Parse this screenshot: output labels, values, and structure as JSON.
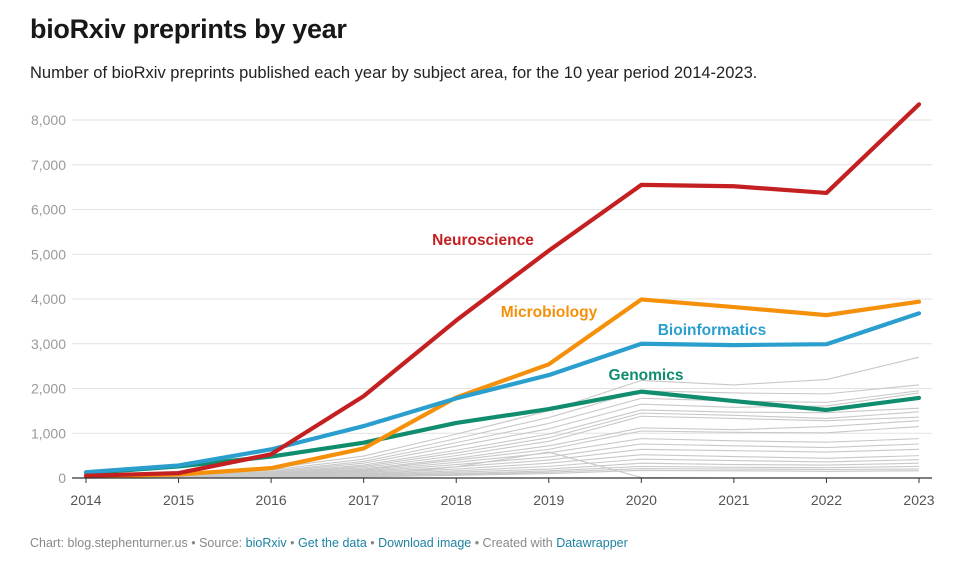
{
  "header": {
    "title": "bioRxiv preprints by year",
    "subtitle": "Number of bioRxiv preprints published each year by subject area, for the 10 year period 2014-2023."
  },
  "footer": {
    "chart_prefix": "Chart: blog.stephenturner.us",
    "sep": " • ",
    "source_prefix": "Source: ",
    "source_link": "bioRxiv",
    "get_data": "Get the data",
    "download": "Download image",
    "created_prefix": "Created with ",
    "created_link": "Datawrapper"
  },
  "chart_data": {
    "type": "line",
    "title": "bioRxiv preprints by year",
    "xlabel": "",
    "ylabel": "",
    "x": [
      2014,
      2015,
      2016,
      2017,
      2018,
      2019,
      2020,
      2021,
      2022,
      2023
    ],
    "x_tick_labels": [
      "2014",
      "2015",
      "2016",
      "2017",
      "2018",
      "2019",
      "2020",
      "2021",
      "2022",
      "2023"
    ],
    "ylim": [
      0,
      8000
    ],
    "y_ticks": [
      0,
      1000,
      2000,
      3000,
      4000,
      5000,
      6000,
      7000,
      8000
    ],
    "y_tick_labels": [
      "0",
      "1,000",
      "2,000",
      "3,000",
      "4,000",
      "5,000",
      "6,000",
      "7,000",
      "8,000"
    ],
    "grid": true,
    "highlighted_series": [
      {
        "name": "Neuroscience",
        "color": "#c42021",
        "values": [
          50,
          110,
          530,
          1830,
          3520,
          5080,
          6550,
          6520,
          6370,
          8350
        ]
      },
      {
        "name": "Microbiology",
        "color": "#f5900a",
        "values": [
          30,
          80,
          220,
          660,
          1800,
          2540,
          3990,
          3820,
          3640,
          3940
        ]
      },
      {
        "name": "Bioinformatics",
        "color": "#2a9fce",
        "values": [
          130,
          280,
          640,
          1160,
          1780,
          2300,
          3000,
          2970,
          2990,
          3680
        ]
      },
      {
        "name": "Genomics",
        "color": "#108c6e",
        "values": [
          110,
          260,
          480,
          790,
          1230,
          1540,
          1930,
          1720,
          1520,
          1790
        ]
      }
    ],
    "background_series_color": "#c8c8c8",
    "background_series": [
      [
        20,
        70,
        220,
        490,
        980,
        1500,
        2180,
        2080,
        2200,
        2700
      ],
      [
        15,
        60,
        180,
        420,
        880,
        1350,
        1950,
        1900,
        1880,
        2080
      ],
      [
        10,
        50,
        150,
        370,
        790,
        1220,
        1780,
        1720,
        1690,
        1950
      ],
      [
        10,
        40,
        130,
        330,
        710,
        1100,
        1650,
        1580,
        1610,
        1900
      ],
      [
        8,
        35,
        110,
        290,
        620,
        980,
        1520,
        1470,
        1460,
        1560
      ],
      [
        8,
        30,
        100,
        260,
        560,
        900,
        1450,
        1400,
        1330,
        1480
      ],
      [
        6,
        25,
        90,
        230,
        500,
        820,
        1380,
        1330,
        1280,
        1360
      ],
      [
        6,
        20,
        80,
        200,
        440,
        720,
        1120,
        1080,
        1150,
        1280
      ],
      [
        5,
        20,
        70,
        180,
        400,
        640,
        1050,
        1020,
        1010,
        1150
      ],
      [
        5,
        15,
        60,
        160,
        350,
        560,
        880,
        830,
        800,
        880
      ],
      [
        4,
        12,
        50,
        140,
        300,
        470,
        760,
        720,
        680,
        760
      ],
      [
        4,
        10,
        40,
        120,
        250,
        400,
        640,
        610,
        580,
        640
      ],
      [
        3,
        8,
        30,
        100,
        200,
        330,
        520,
        480,
        440,
        500
      ],
      [
        3,
        6,
        25,
        80,
        160,
        260,
        420,
        390,
        360,
        410
      ],
      [
        2,
        5,
        20,
        60,
        130,
        200,
        330,
        300,
        290,
        330
      ],
      [
        2,
        4,
        15,
        45,
        100,
        160,
        260,
        240,
        230,
        260
      ],
      [
        1,
        3,
        10,
        35,
        80,
        130,
        210,
        200,
        190,
        200
      ],
      [
        1,
        2,
        8,
        25,
        60,
        100,
        170,
        160,
        150,
        160
      ],
      [
        1,
        2,
        10,
        60,
        250,
        580,
        10,
        0,
        0,
        0
      ]
    ]
  }
}
